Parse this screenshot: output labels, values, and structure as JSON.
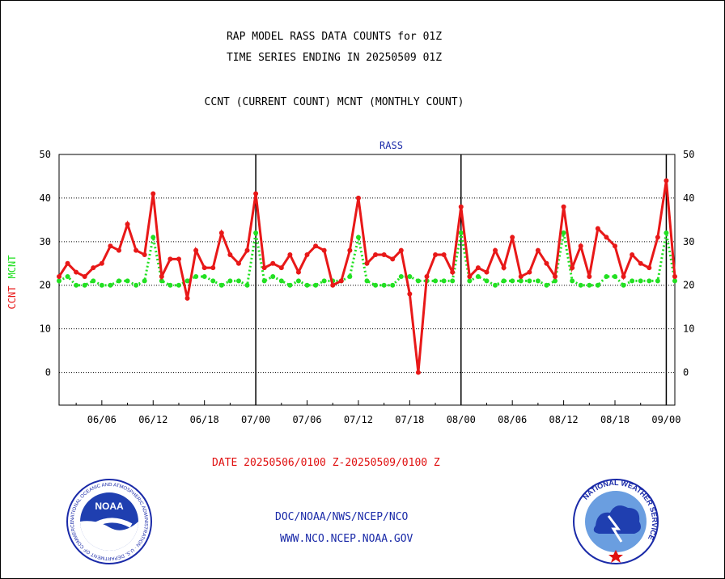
{
  "header": {
    "line1": "RAP MODEL RASS DATA COUNTS for 01Z",
    "line2": "TIME SERIES ENDING IN 20250509 01Z",
    "line3": "CCNT (CURRENT COUNT) MCNT (MONTHLY COUNT)"
  },
  "chart_data": {
    "type": "line",
    "title": "RASS",
    "ylabel_left_ccnt": "CCNT",
    "ylabel_left_mcnt": "MCNT",
    "ylim": [
      -7.5,
      50
    ],
    "yticks": [
      0,
      10,
      20,
      30,
      40,
      50
    ],
    "xticks": [
      "06/06",
      "06/12",
      "06/18",
      "07/00",
      "07/06",
      "07/12",
      "07/18",
      "08/00",
      "08/06",
      "08/12",
      "08/18",
      "09/00"
    ],
    "grid": true,
    "colors": {
      "ccnt": "#e81818",
      "mcnt": "#22e022"
    },
    "series": [
      {
        "name": "CCNT",
        "values": [
          22,
          25,
          23,
          22,
          24,
          25,
          29,
          28,
          34,
          28,
          27,
          41,
          22,
          26,
          26,
          17,
          28,
          24,
          24,
          32,
          27,
          25,
          28,
          41,
          24,
          25,
          24,
          27,
          23,
          27,
          29,
          28,
          20,
          21,
          28,
          40,
          25,
          27,
          27,
          26,
          28,
          18,
          0,
          22,
          27,
          27,
          23,
          38,
          22,
          24,
          23,
          28,
          24,
          31,
          22,
          23,
          28,
          25,
          22,
          38,
          24,
          29,
          22,
          33,
          31,
          29,
          22,
          27,
          25,
          24,
          31,
          44,
          22
        ]
      },
      {
        "name": "MCNT",
        "values": [
          21,
          22,
          20,
          20,
          21,
          20,
          20,
          21,
          21,
          20,
          21,
          31,
          21,
          20,
          20,
          21,
          22,
          22,
          21,
          20,
          21,
          21,
          20,
          32,
          21,
          22,
          21,
          20,
          21,
          20,
          20,
          21,
          21,
          21,
          22,
          31,
          21,
          20,
          20,
          20,
          22,
          22,
          21,
          21,
          21,
          21,
          21,
          32,
          21,
          22,
          21,
          20,
          21,
          21,
          21,
          21,
          21,
          20,
          21,
          32,
          21,
          20,
          20,
          20,
          22,
          22,
          20,
          21,
          21,
          21,
          21,
          32,
          21
        ]
      }
    ]
  },
  "date_text": "DATE 20250506/0100 Z-20250509/0100 Z",
  "footer": {
    "org": "DOC/NOAA/NWS/NCEP/NCO",
    "url": "WWW.NCO.NCEP.NOAA.GOV"
  },
  "logos": {
    "noaa_text": "NOAA",
    "noaa_ring": "NATIONAL OCEANIC AND ATMOSPHERIC ADMINISTRATION · U.S. DEPARTMENT OF COMMERCE",
    "nws_ring": "NATIONAL WEATHER SERVICE"
  }
}
